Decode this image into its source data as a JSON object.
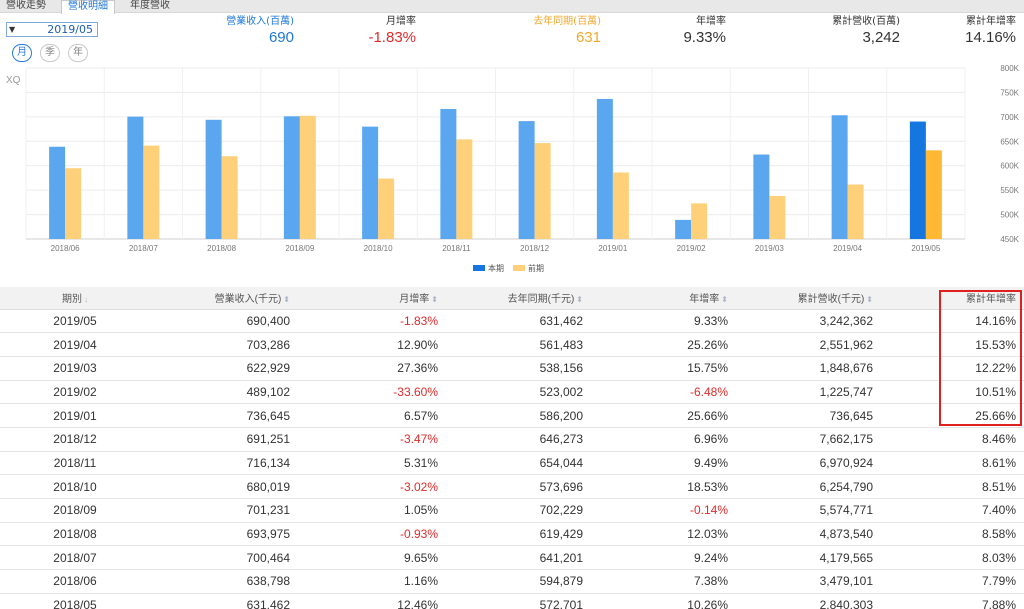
{
  "tabs": [
    {
      "label": "營收走勢"
    },
    {
      "label": "營收明細"
    },
    {
      "label": "年度營收"
    }
  ],
  "date_selector": {
    "value": "2019/05",
    "arrow": "▼"
  },
  "period_buttons": [
    {
      "label": "月"
    },
    {
      "label": "季"
    },
    {
      "label": "年"
    }
  ],
  "summary": [
    {
      "label": "營業收入(百萬)",
      "value": "690"
    },
    {
      "label": "月增率",
      "value": "-1.83%"
    },
    {
      "label": "去年同期(百萬)",
      "value": "631"
    },
    {
      "label": "年增率",
      "value": "9.33%"
    },
    {
      "label": "累計營收(百萬)",
      "value": "3,242"
    },
    {
      "label": "累計年增率",
      "value": "14.16%"
    }
  ],
  "colors": {
    "current": "#5aa7f0",
    "current_highlight": "#1576e0",
    "prior": "#ffd07a",
    "prior_highlight": "#ffb833",
    "negative": "#e02b2b",
    "summary_blue": "#1e78d8",
    "summary_orange": "#f2a82e"
  },
  "chart_data": {
    "type": "bar",
    "watermark": "XQ",
    "categories": [
      "2018/06",
      "2018/07",
      "2018/08",
      "2018/09",
      "2018/10",
      "2018/11",
      "2018/12",
      "2019/01",
      "2019/02",
      "2019/03",
      "2019/04",
      "2019/05"
    ],
    "series": [
      {
        "name": "本期",
        "values": [
          638.8,
          700.5,
          694.0,
          701.2,
          680.0,
          716.1,
          691.3,
          736.6,
          489.1,
          622.9,
          703.3,
          690.4
        ]
      },
      {
        "name": "前期",
        "values": [
          594.9,
          641.2,
          619.4,
          702.2,
          573.7,
          654.0,
          646.3,
          586.2,
          523.0,
          538.2,
          561.5,
          631.5
        ]
      }
    ],
    "yticks": [
      "800K",
      "750K",
      "700K",
      "650K",
      "600K",
      "550K",
      "500K",
      "450K"
    ],
    "ylim": [
      450,
      800
    ],
    "ylabel": "",
    "xlabel": ""
  },
  "table": {
    "headers": [
      "期別",
      "營業收入(千元)",
      "月增率",
      "去年同期(千元)",
      "年增率",
      "累計營收(千元)",
      "累計年增率"
    ],
    "sort_icons": [
      "↓",
      "⬍",
      "⬍",
      "⬍",
      "⬍",
      "⬍",
      ""
    ],
    "rows": [
      [
        "2019/05",
        "690,400",
        "-1.83%",
        "631,462",
        "9.33%",
        "3,242,362",
        "14.16%"
      ],
      [
        "2019/04",
        "703,286",
        "12.90%",
        "561,483",
        "25.26%",
        "2,551,962",
        "15.53%"
      ],
      [
        "2019/03",
        "622,929",
        "27.36%",
        "538,156",
        "15.75%",
        "1,848,676",
        "12.22%"
      ],
      [
        "2019/02",
        "489,102",
        "-33.60%",
        "523,002",
        "-6.48%",
        "1,225,747",
        "10.51%"
      ],
      [
        "2019/01",
        "736,645",
        "6.57%",
        "586,200",
        "25.66%",
        "736,645",
        "25.66%"
      ],
      [
        "2018/12",
        "691,251",
        "-3.47%",
        "646,273",
        "6.96%",
        "7,662,175",
        "8.46%"
      ],
      [
        "2018/11",
        "716,134",
        "5.31%",
        "654,044",
        "9.49%",
        "6,970,924",
        "8.61%"
      ],
      [
        "2018/10",
        "680,019",
        "-3.02%",
        "573,696",
        "18.53%",
        "6,254,790",
        "8.51%"
      ],
      [
        "2018/09",
        "701,231",
        "1.05%",
        "702,229",
        "-0.14%",
        "5,574,771",
        "7.40%"
      ],
      [
        "2018/08",
        "693,975",
        "-0.93%",
        "619,429",
        "12.03%",
        "4,873,540",
        "8.58%"
      ],
      [
        "2018/07",
        "700,464",
        "9.65%",
        "641,201",
        "9.24%",
        "4,179,565",
        "8.03%"
      ],
      [
        "2018/06",
        "638,798",
        "1.16%",
        "594,879",
        "7.38%",
        "3,479,101",
        "7.79%"
      ],
      [
        "2018/05",
        "631,462",
        "12.46%",
        "572,701",
        "10.26%",
        "2,840,303",
        "7.88%"
      ]
    ]
  }
}
